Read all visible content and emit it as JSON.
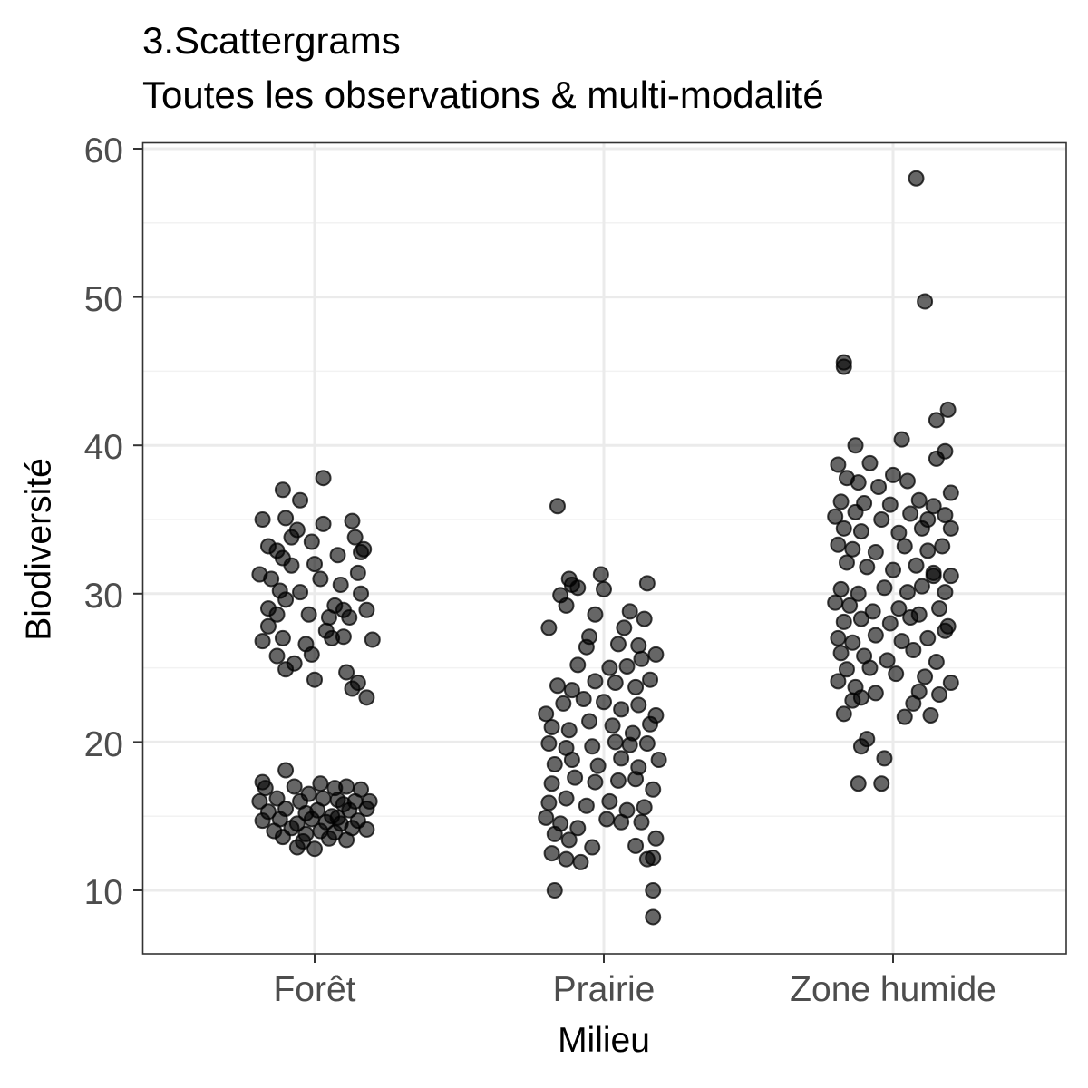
{
  "chart": {
    "title_line1": "3.Scattergrams",
    "title_line2": "Toutes les observations & multi-modalité",
    "xlabel": "Milieu",
    "ylabel": "Biodiversité",
    "yticks": [
      "60",
      "50",
      "40",
      "30",
      "20",
      "10"
    ],
    "xticks": [
      "Forêt",
      "Prairie",
      "Zone humide"
    ]
  },
  "style": {
    "point_fill": "#000000",
    "point_alpha": 0.6,
    "grid_major": "#ebebeb",
    "grid_minor": "#f2f2f2",
    "panel_border": "#333333",
    "tick_text": "#4d4d4d"
  },
  "chart_data": {
    "type": "scatter",
    "title": "3.Scattergrams\nToutes les observations & multi-modalité",
    "xlabel": "Milieu",
    "ylabel": "Biodiversité",
    "categories": [
      "Forêt",
      "Prairie",
      "Zone humide"
    ],
    "ylim": [
      5.8,
      60.4
    ],
    "yticks": [
      10,
      20,
      30,
      40,
      50,
      60
    ],
    "grid": true,
    "jitter": true,
    "series": [
      {
        "name": "Forêt",
        "description": "Bimodal: upper cluster ~24-38, lower cluster ~13-18",
        "points": [
          [
            -0.11,
            37.0
          ],
          [
            0.03,
            37.8
          ],
          [
            -0.05,
            36.3
          ],
          [
            -0.18,
            35.0
          ],
          [
            -0.1,
            35.1
          ],
          [
            0.03,
            34.7
          ],
          [
            0.13,
            34.9
          ],
          [
            -0.06,
            34.3
          ],
          [
            -0.01,
            33.5
          ],
          [
            -0.08,
            33.8
          ],
          [
            0.14,
            33.8
          ],
          [
            -0.16,
            33.2
          ],
          [
            -0.13,
            32.9
          ],
          [
            0.16,
            32.8
          ],
          [
            0.08,
            32.6
          ],
          [
            -0.11,
            32.4
          ],
          [
            -0.08,
            31.9
          ],
          [
            0.0,
            32.0
          ],
          [
            0.17,
            33.0
          ],
          [
            -0.19,
            31.3
          ],
          [
            -0.15,
            31.0
          ],
          [
            0.02,
            31.0
          ],
          [
            0.15,
            31.4
          ],
          [
            0.09,
            30.6
          ],
          [
            -0.12,
            30.2
          ],
          [
            -0.05,
            30.1
          ],
          [
            0.16,
            30.0
          ],
          [
            -0.1,
            29.6
          ],
          [
            0.07,
            29.2
          ],
          [
            -0.16,
            29.0
          ],
          [
            0.1,
            28.9
          ],
          [
            0.18,
            28.9
          ],
          [
            -0.13,
            28.6
          ],
          [
            -0.02,
            28.6
          ],
          [
            0.05,
            28.4
          ],
          [
            0.12,
            28.4
          ],
          [
            -0.16,
            27.8
          ],
          [
            0.04,
            27.5
          ],
          [
            -0.11,
            27.0
          ],
          [
            0.06,
            27.0
          ],
          [
            0.1,
            27.1
          ],
          [
            -0.18,
            26.8
          ],
          [
            -0.03,
            26.6
          ],
          [
            -0.13,
            25.8
          ],
          [
            -0.07,
            25.3
          ],
          [
            -0.1,
            24.9
          ],
          [
            -0.01,
            25.9
          ],
          [
            0.11,
            24.7
          ],
          [
            0.15,
            24.0
          ],
          [
            0.13,
            23.6
          ],
          [
            0.18,
            23.0
          ],
          [
            0.0,
            24.2
          ],
          [
            0.2,
            26.9
          ],
          [
            -0.18,
            17.3
          ],
          [
            -0.1,
            18.1
          ],
          [
            -0.17,
            16.9
          ],
          [
            -0.07,
            17.0
          ],
          [
            0.02,
            17.2
          ],
          [
            0.07,
            16.9
          ],
          [
            0.11,
            17.0
          ],
          [
            0.16,
            16.8
          ],
          [
            -0.19,
            16.0
          ],
          [
            -0.13,
            16.2
          ],
          [
            -0.05,
            16.0
          ],
          [
            0.03,
            16.2
          ],
          [
            0.08,
            16.1
          ],
          [
            0.14,
            16.0
          ],
          [
            0.19,
            16.0
          ],
          [
            -0.16,
            15.3
          ],
          [
            -0.1,
            15.5
          ],
          [
            -0.03,
            15.2
          ],
          [
            0.01,
            15.4
          ],
          [
            0.06,
            15.0
          ],
          [
            0.12,
            15.4
          ],
          [
            0.18,
            15.5
          ],
          [
            -0.18,
            14.7
          ],
          [
            -0.12,
            14.8
          ],
          [
            -0.06,
            14.5
          ],
          [
            -0.01,
            14.8
          ],
          [
            0.04,
            14.6
          ],
          [
            0.09,
            14.5
          ],
          [
            0.15,
            14.7
          ],
          [
            -0.14,
            14.0
          ],
          [
            -0.08,
            14.2
          ],
          [
            -0.03,
            13.8
          ],
          [
            0.02,
            14.0
          ],
          [
            0.07,
            13.9
          ],
          [
            0.13,
            14.2
          ],
          [
            0.18,
            14.1
          ],
          [
            -0.11,
            13.6
          ],
          [
            -0.04,
            13.3
          ],
          [
            0.0,
            12.8
          ],
          [
            0.05,
            13.5
          ],
          [
            0.11,
            13.4
          ],
          [
            -0.06,
            12.9
          ],
          [
            0.08,
            14.9
          ],
          [
            -0.02,
            16.5
          ],
          [
            0.1,
            15.8
          ]
        ]
      },
      {
        "name": "Prairie",
        "description": "Unimodal ~12-28 centered ~19",
        "points": [
          [
            -0.16,
            35.9
          ],
          [
            -0.12,
            31.0
          ],
          [
            -0.11,
            30.6
          ],
          [
            -0.09,
            30.4
          ],
          [
            -0.15,
            29.9
          ],
          [
            -0.13,
            29.2
          ],
          [
            -0.01,
            31.3
          ],
          [
            0.0,
            30.3
          ],
          [
            0.15,
            30.7
          ],
          [
            -0.03,
            28.6
          ],
          [
            0.09,
            28.8
          ],
          [
            0.14,
            28.3
          ],
          [
            -0.19,
            27.7
          ],
          [
            -0.05,
            27.1
          ],
          [
            0.07,
            27.7
          ],
          [
            -0.06,
            26.4
          ],
          [
            0.05,
            26.6
          ],
          [
            0.12,
            26.5
          ],
          [
            0.18,
            25.9
          ],
          [
            -0.09,
            25.2
          ],
          [
            0.02,
            25.0
          ],
          [
            0.08,
            25.1
          ],
          [
            0.13,
            25.6
          ],
          [
            -0.16,
            23.8
          ],
          [
            -0.11,
            23.5
          ],
          [
            -0.03,
            24.1
          ],
          [
            0.04,
            24.0
          ],
          [
            0.11,
            23.7
          ],
          [
            0.16,
            24.2
          ],
          [
            -0.2,
            21.9
          ],
          [
            -0.14,
            22.6
          ],
          [
            -0.07,
            22.9
          ],
          [
            0.0,
            22.7
          ],
          [
            0.06,
            22.2
          ],
          [
            0.12,
            22.5
          ],
          [
            0.18,
            21.8
          ],
          [
            -0.18,
            21.0
          ],
          [
            -0.12,
            20.8
          ],
          [
            -0.05,
            21.4
          ],
          [
            0.03,
            21.1
          ],
          [
            0.1,
            20.6
          ],
          [
            0.16,
            21.2
          ],
          [
            -0.19,
            19.9
          ],
          [
            -0.13,
            19.6
          ],
          [
            -0.04,
            19.7
          ],
          [
            0.04,
            20.0
          ],
          [
            0.09,
            19.8
          ],
          [
            0.15,
            19.9
          ],
          [
            -0.17,
            18.5
          ],
          [
            -0.11,
            18.8
          ],
          [
            -0.02,
            18.4
          ],
          [
            0.06,
            18.9
          ],
          [
            0.12,
            18.3
          ],
          [
            0.19,
            18.8
          ],
          [
            -0.18,
            17.2
          ],
          [
            -0.1,
            17.6
          ],
          [
            -0.03,
            17.3
          ],
          [
            0.05,
            17.4
          ],
          [
            0.11,
            17.5
          ],
          [
            0.17,
            16.8
          ],
          [
            -0.19,
            15.9
          ],
          [
            -0.13,
            16.2
          ],
          [
            -0.06,
            15.7
          ],
          [
            0.02,
            16.0
          ],
          [
            0.08,
            15.4
          ],
          [
            0.14,
            15.6
          ],
          [
            -0.2,
            14.9
          ],
          [
            -0.15,
            14.5
          ],
          [
            -0.09,
            14.2
          ],
          [
            0.01,
            14.8
          ],
          [
            0.06,
            14.6
          ],
          [
            0.13,
            14.6
          ],
          [
            -0.17,
            13.8
          ],
          [
            -0.12,
            13.4
          ],
          [
            -0.04,
            12.9
          ],
          [
            0.11,
            13.0
          ],
          [
            0.18,
            13.5
          ],
          [
            -0.18,
            12.5
          ],
          [
            -0.13,
            12.1
          ],
          [
            -0.08,
            11.9
          ],
          [
            0.15,
            12.1
          ],
          [
            0.17,
            12.2
          ],
          [
            -0.17,
            10.0
          ],
          [
            0.17,
            10.0
          ],
          [
            0.17,
            8.2
          ]
        ]
      },
      {
        "name": "Zone humide",
        "description": "Unimodal ~17-42 with outliers up to 58",
        "points": [
          [
            0.08,
            58.0
          ],
          [
            0.11,
            49.7
          ],
          [
            -0.17,
            45.6
          ],
          [
            -0.17,
            45.3
          ],
          [
            0.19,
            42.4
          ],
          [
            0.15,
            41.7
          ],
          [
            0.03,
            40.4
          ],
          [
            0.18,
            39.6
          ],
          [
            -0.13,
            40.0
          ],
          [
            -0.19,
            38.7
          ],
          [
            -0.08,
            38.8
          ],
          [
            0.0,
            38.0
          ],
          [
            0.15,
            39.1
          ],
          [
            -0.16,
            37.8
          ],
          [
            -0.12,
            37.5
          ],
          [
            -0.05,
            37.2
          ],
          [
            0.05,
            37.6
          ],
          [
            0.2,
            36.8
          ],
          [
            -0.18,
            36.2
          ],
          [
            -0.1,
            36.1
          ],
          [
            -0.01,
            36.0
          ],
          [
            0.09,
            36.3
          ],
          [
            0.14,
            35.9
          ],
          [
            -0.2,
            35.2
          ],
          [
            -0.13,
            35.5
          ],
          [
            -0.04,
            35.0
          ],
          [
            0.06,
            35.4
          ],
          [
            0.18,
            35.3
          ],
          [
            -0.17,
            34.4
          ],
          [
            -0.11,
            34.2
          ],
          [
            0.02,
            34.1
          ],
          [
            0.1,
            34.4
          ],
          [
            0.2,
            34.4
          ],
          [
            -0.19,
            33.3
          ],
          [
            -0.14,
            33.0
          ],
          [
            -0.06,
            32.8
          ],
          [
            0.04,
            33.2
          ],
          [
            0.12,
            32.9
          ],
          [
            0.17,
            33.2
          ],
          [
            -0.16,
            32.1
          ],
          [
            -0.09,
            31.8
          ],
          [
            0.0,
            31.6
          ],
          [
            0.08,
            31.9
          ],
          [
            0.14,
            31.4
          ],
          [
            0.2,
            31.2
          ],
          [
            -0.18,
            30.3
          ],
          [
            -0.12,
            30.0
          ],
          [
            -0.03,
            30.4
          ],
          [
            0.05,
            30.1
          ],
          [
            0.1,
            30.5
          ],
          [
            0.18,
            30.1
          ],
          [
            -0.2,
            29.4
          ],
          [
            -0.15,
            29.2
          ],
          [
            -0.07,
            28.8
          ],
          [
            0.02,
            29.0
          ],
          [
            0.09,
            28.6
          ],
          [
            0.16,
            29.0
          ],
          [
            -0.17,
            28.1
          ],
          [
            -0.11,
            28.3
          ],
          [
            -0.01,
            28.0
          ],
          [
            0.06,
            28.4
          ],
          [
            0.19,
            27.8
          ],
          [
            -0.19,
            27.0
          ],
          [
            -0.14,
            26.7
          ],
          [
            -0.06,
            27.2
          ],
          [
            0.03,
            26.8
          ],
          [
            0.12,
            27.0
          ],
          [
            0.18,
            27.5
          ],
          [
            -0.18,
            26.0
          ],
          [
            -0.1,
            25.8
          ],
          [
            -0.02,
            25.5
          ],
          [
            0.07,
            26.2
          ],
          [
            0.15,
            25.4
          ],
          [
            -0.16,
            24.9
          ],
          [
            -0.08,
            25.0
          ],
          [
            0.01,
            24.6
          ],
          [
            0.11,
            24.4
          ],
          [
            -0.19,
            24.1
          ],
          [
            -0.13,
            23.7
          ],
          [
            -0.06,
            23.3
          ],
          [
            0.09,
            23.4
          ],
          [
            0.16,
            23.2
          ],
          [
            -0.14,
            22.8
          ],
          [
            -0.11,
            23.0
          ],
          [
            -0.17,
            21.9
          ],
          [
            0.04,
            21.7
          ],
          [
            0.13,
            21.8
          ],
          [
            -0.09,
            20.2
          ],
          [
            -0.11,
            19.7
          ],
          [
            -0.03,
            18.9
          ],
          [
            -0.12,
            17.2
          ],
          [
            -0.04,
            17.2
          ],
          [
            0.2,
            24.0
          ],
          [
            0.07,
            22.6
          ],
          [
            0.14,
            31.2
          ],
          [
            0.12,
            35.0
          ]
        ]
      }
    ]
  }
}
